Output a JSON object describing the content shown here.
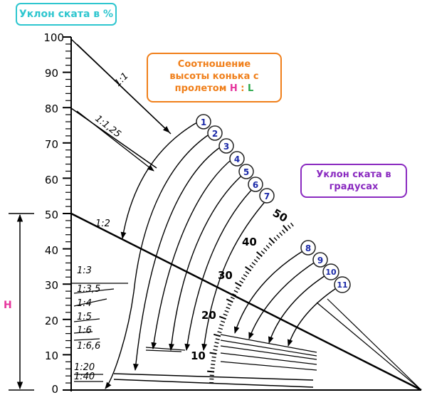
{
  "labels": {
    "percent_title": "Уклон ската в %",
    "ratio_title_line1": "Соотношение",
    "ratio_title_line2": "высоты конька с",
    "ratio_title_line3": "пролетом",
    "ratio_H": "H",
    "ratio_sep": " : ",
    "ratio_L": "L",
    "degrees_title_line1": "Уклон ската в",
    "degrees_title_line2": "градусах",
    "height_label": "H"
  },
  "axis_ticks": [
    "100",
    "90",
    "80",
    "70",
    "60",
    "50",
    "40",
    "30",
    "20",
    "10",
    "0"
  ],
  "ratio_lines": {
    "r1": "1:1",
    "r125": "1:1,25",
    "r2": "1:2",
    "r3": "1:3",
    "r35": "1:3,5",
    "r4": "1:4",
    "r5": "1:5",
    "r6": "1:6",
    "r66": "1:6,6",
    "r20": "1:20",
    "r40": "1:40"
  },
  "degree_scale": {
    "d10": "10",
    "d20": "20",
    "d30": "30",
    "d40": "40",
    "d50": "50"
  },
  "markers": [
    "1",
    "2",
    "3",
    "4",
    "5",
    "6",
    "7",
    "8",
    "9",
    "10",
    "11"
  ],
  "colors": {
    "percent_accent": "#2ec6cf",
    "ratio_accent": "#f07f1a",
    "degree_accent": "#8a2ac0",
    "height_accent": "#e6359d",
    "marker_number": "#1b2aa8",
    "line": "#000000"
  }
}
